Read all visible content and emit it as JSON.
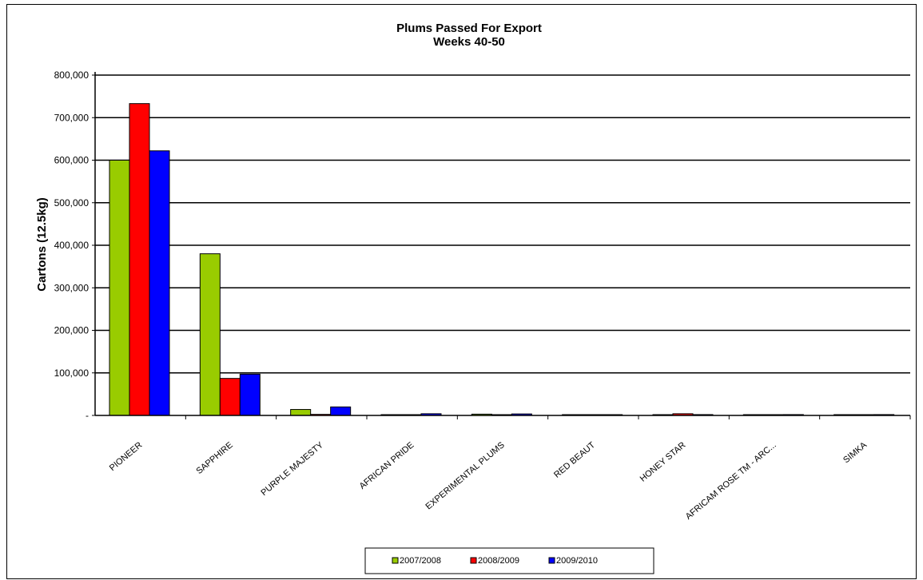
{
  "chart_data": {
    "type": "bar",
    "title_lines": [
      "Plums Passed For Export",
      "Weeks 40-50"
    ],
    "ylabel": "Cartons (12.5kg)",
    "ylim": [
      0,
      800000
    ],
    "y_ticks": [
      0,
      100000,
      200000,
      300000,
      400000,
      500000,
      600000,
      700000,
      800000
    ],
    "y_tick_labels": [
      "-",
      "100,000",
      "200,000",
      "300,000",
      "400,000",
      "500,000",
      "600,000",
      "700,000",
      "800,000"
    ],
    "categories": [
      "PIONEER",
      "SAPPHIRE",
      "PURPLE MAJESTY",
      "AFRICAN PRIDE",
      "EXPERIMENTAL PLUMS",
      "RED BEAUT",
      "HONEY STAR",
      "AFRICAM ROSE TM - ARC...",
      "SIMKA"
    ],
    "series": [
      {
        "name": "2007/2008",
        "color": "#99cc00",
        "values": [
          600000,
          380000,
          14000,
          1500,
          3000,
          600,
          500,
          300,
          200
        ]
      },
      {
        "name": "2008/2009",
        "color": "#ff0000",
        "values": [
          733000,
          87000,
          2500,
          800,
          1200,
          1500,
          4000,
          500,
          300
        ]
      },
      {
        "name": "2009/2010",
        "color": "#0000ff",
        "values": [
          622000,
          97000,
          20000,
          4000,
          3500,
          1500,
          2000,
          2000,
          2000
        ]
      }
    ],
    "grid": true,
    "legend_position": "bottom"
  }
}
